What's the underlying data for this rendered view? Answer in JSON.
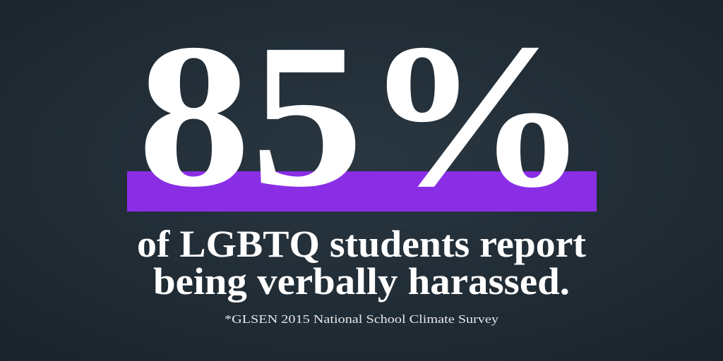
{
  "headline": {
    "stat": "85%",
    "line1": "of LGBTQ students report",
    "line2": "being verbally harassed."
  },
  "source": "*GLSEN 2015 National School Climate Survey"
}
